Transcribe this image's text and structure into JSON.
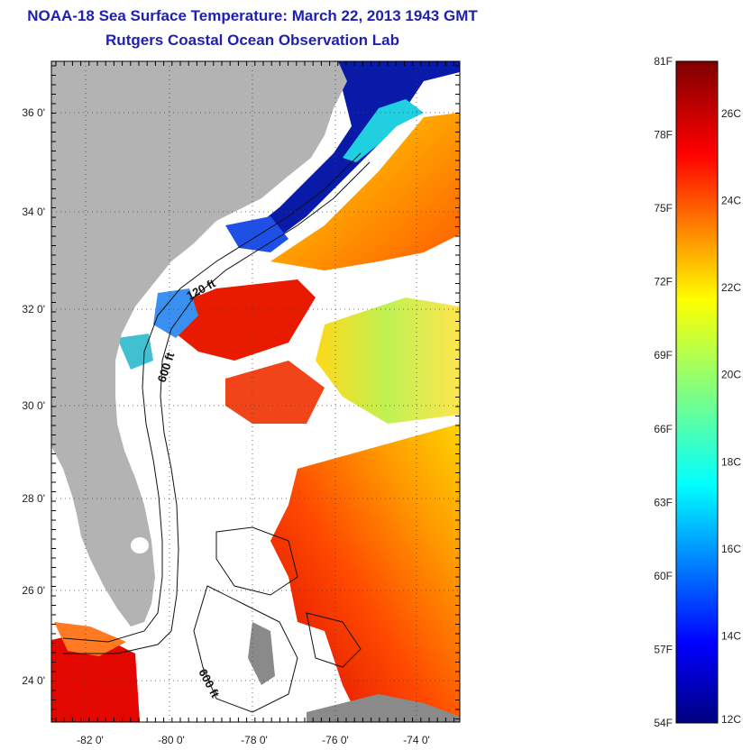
{
  "header": {
    "title": "NOAA-18 Sea Surface Temperature:  March 22, 2013 1943 GMT",
    "subtitle": "Rutgers Coastal Ocean Observation Lab"
  },
  "map": {
    "lat_ticks": [
      "36 0'",
      "34 0'",
      "32 0'",
      "30 0'",
      "28 0'",
      "26 0'",
      "24 0'"
    ],
    "lon_ticks": [
      "-82 0'",
      "-80 0'",
      "-78 0'",
      "-76 0'",
      "-74 0'"
    ],
    "contour_labels": [
      "120 ft",
      "600 ft",
      "600 ft"
    ],
    "land_color": "#b3b3b3",
    "cloud_color": "#ffffff"
  },
  "colorbar": {
    "fahrenheit_labels": [
      "81F",
      "78F",
      "75F",
      "72F",
      "69F",
      "66F",
      "63F",
      "60F",
      "57F",
      "54F"
    ],
    "celsius_labels": [
      "26C",
      "24C",
      "22C",
      "20C",
      "18C",
      "16C",
      "14C",
      "12C"
    ],
    "range_f": [
      54,
      81
    ],
    "range_c": [
      12,
      27.2
    ]
  }
}
